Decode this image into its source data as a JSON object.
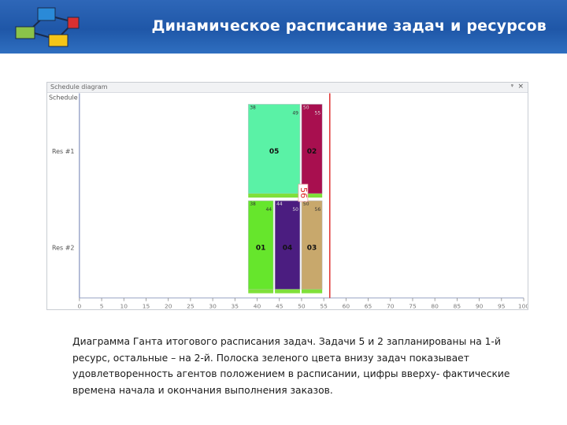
{
  "header": {
    "title": "Динамическое расписание задач и ресурсов"
  },
  "diagram": {
    "title": "Schedule diagram",
    "pin_label": "ᵠ",
    "close_label": "×",
    "corner_label": "Schedule",
    "current_time_label": "56",
    "colors": {
      "task05": "#5af2a6",
      "task02": "#a80f4f",
      "task01": "#66e62c",
      "task04": "#4b1d80",
      "task03": "#c8a86c",
      "satisfaction": "#7fe03a",
      "time_line": "#dd2222"
    }
  },
  "chart_data": {
    "type": "gantt",
    "resources": [
      "Res #1",
      "Res #2"
    ],
    "x_ticks": [
      0,
      5,
      10,
      15,
      20,
      25,
      30,
      35,
      40,
      45,
      50,
      55,
      60,
      65,
      70,
      75,
      80,
      85,
      90,
      95,
      100
    ],
    "xlim": [
      0,
      100
    ],
    "current_time": 56,
    "tasks": [
      {
        "id": "05",
        "resource": "Res #1",
        "start": 38,
        "end": 50,
        "start_label": "38",
        "end_label": "49"
      },
      {
        "id": "02",
        "resource": "Res #1",
        "start": 50,
        "end": 55,
        "start_label": "50",
        "end_label": "55"
      },
      {
        "id": "01",
        "resource": "Res #2",
        "start": 38,
        "end": 44,
        "start_label": "38",
        "end_label": "44"
      },
      {
        "id": "04",
        "resource": "Res #2",
        "start": 44,
        "end": 50,
        "start_label": "44",
        "end_label": "50"
      },
      {
        "id": "03",
        "resource": "Res #2",
        "start": 50,
        "end": 55,
        "start_label": "50",
        "end_label": "56"
      }
    ]
  },
  "caption": "Диаграмма Ганта итогового расписания задач. Задачи 5 и 2 запланированы на 1-й ресурс, остальные – на 2-й. Полоска зеленого цвета внизу задач показывает удовлетворенность агентов положением в расписании, цифры вверху- фактические времена начала и окончания выполнения заказов."
}
